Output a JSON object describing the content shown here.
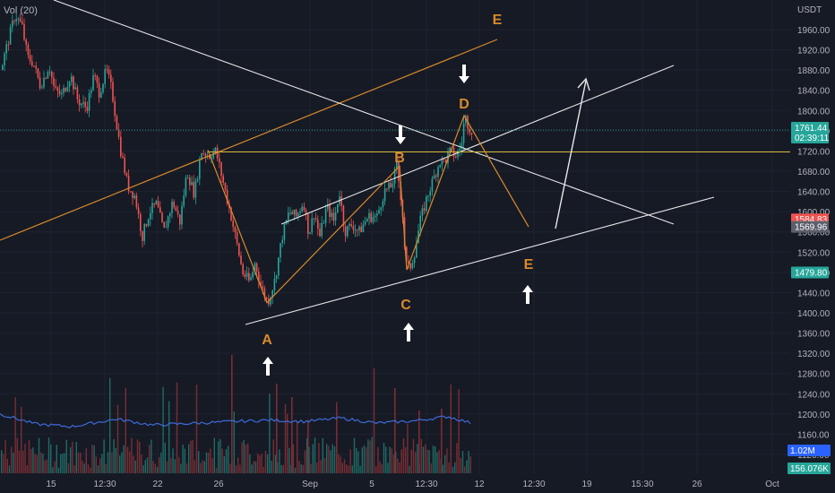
{
  "volume_label": "Vol (20)",
  "currency": "USDT",
  "colors": {
    "background": "#161a25",
    "up": "#26a69a",
    "down": "#ef5350",
    "vol_up": "#1f6b66",
    "vol_down": "#7a2d33",
    "orange": "#d98a2b",
    "white": "#e8e8e8",
    "yellow": "#d4b73a",
    "vol_ma": "#3d6bd9"
  },
  "price_badges": [
    {
      "text": "1761.44",
      "sub": "02:39:11",
      "price": 1761.44,
      "color": "#26a69a"
    },
    {
      "text": "1584.83",
      "price": 1584.83,
      "color": "#ef5350"
    },
    {
      "text": "1569.96",
      "price": 1569.96,
      "color": "#5d606b"
    },
    {
      "text": "1479.80",
      "price": 1479.8,
      "color": "#26a69a"
    }
  ],
  "volume_badges": [
    {
      "text": "1.02M",
      "color": "#2962ff"
    },
    {
      "text": "156.076K",
      "color": "#26a69a"
    }
  ],
  "wave_labels": [
    "A",
    "B",
    "C",
    "D",
    "E",
    "E"
  ],
  "chart_data": {
    "type": "candlestick",
    "title": "",
    "xlabel": "",
    "ylabel": "",
    "ylim": [
      1120,
      1990
    ],
    "y_ticks": [
      1960,
      1920,
      1880,
      1840,
      1800,
      1760,
      1720,
      1680,
      1640,
      1600,
      1560,
      1520,
      1480,
      1440,
      1400,
      1360,
      1320,
      1280,
      1240,
      1200,
      1160,
      1120
    ],
    "x_ticks": [
      "15",
      "12:30",
      "22",
      "26",
      "Sep",
      "5",
      "12:30",
      "12",
      "12:30",
      "19",
      "15:30",
      "26",
      "Oct"
    ],
    "grid": true,
    "price_anchors": [
      [
        0,
        1880
      ],
      [
        8,
        1935
      ],
      [
        16,
        1990
      ],
      [
        24,
        1965
      ],
      [
        30,
        1905
      ],
      [
        36,
        1895
      ],
      [
        44,
        1850
      ],
      [
        50,
        1870
      ],
      [
        54,
        1890
      ],
      [
        60,
        1840
      ],
      [
        68,
        1830
      ],
      [
        78,
        1870
      ],
      [
        86,
        1820
      ],
      [
        96,
        1805
      ],
      [
        104,
        1870
      ],
      [
        110,
        1835
      ],
      [
        118,
        1880
      ],
      [
        124,
        1840
      ],
      [
        128,
        1790
      ],
      [
        134,
        1720
      ],
      [
        142,
        1650
      ],
      [
        150,
        1630
      ],
      [
        158,
        1550
      ],
      [
        166,
        1600
      ],
      [
        174,
        1615
      ],
      [
        182,
        1560
      ],
      [
        192,
        1620
      ],
      [
        200,
        1580
      ],
      [
        208,
        1680
      ],
      [
        216,
        1635
      ],
      [
        224,
        1720
      ],
      [
        232,
        1710
      ],
      [
        240,
        1720
      ],
      [
        248,
        1660
      ],
      [
        256,
        1600
      ],
      [
        262,
        1550
      ],
      [
        270,
        1480
      ],
      [
        278,
        1460
      ],
      [
        284,
        1500
      ],
      [
        290,
        1455
      ],
      [
        298,
        1420
      ],
      [
        306,
        1465
      ],
      [
        314,
        1550
      ],
      [
        322,
        1600
      ],
      [
        330,
        1590
      ],
      [
        338,
        1620
      ],
      [
        344,
        1555
      ],
      [
        350,
        1600
      ],
      [
        356,
        1550
      ],
      [
        364,
        1610
      ],
      [
        372,
        1580
      ],
      [
        378,
        1640
      ],
      [
        384,
        1560
      ],
      [
        392,
        1575
      ],
      [
        400,
        1560
      ],
      [
        410,
        1590
      ],
      [
        420,
        1590
      ],
      [
        428,
        1640
      ],
      [
        436,
        1650
      ],
      [
        442,
        1690
      ],
      [
        448,
        1610
      ],
      [
        452,
        1500
      ],
      [
        456,
        1485
      ],
      [
        462,
        1520
      ],
      [
        468,
        1580
      ],
      [
        476,
        1630
      ],
      [
        484,
        1670
      ],
      [
        490,
        1700
      ],
      [
        496,
        1700
      ],
      [
        502,
        1720
      ],
      [
        508,
        1710
      ],
      [
        514,
        1730
      ],
      [
        518,
        1790
      ],
      [
        522,
        1770
      ],
      [
        526,
        1760
      ]
    ],
    "volume_anchors": [
      [
        0,
        1200
      ],
      [
        40,
        1180
      ],
      [
        80,
        1175
      ],
      [
        130,
        1190
      ],
      [
        170,
        1178
      ],
      [
        220,
        1182
      ],
      [
        260,
        1185
      ],
      [
        300,
        1188
      ],
      [
        340,
        1185
      ],
      [
        380,
        1192
      ],
      [
        420,
        1182
      ],
      [
        460,
        1186
      ],
      [
        500,
        1195
      ],
      [
        526,
        1182
      ]
    ],
    "annotations": {
      "wave_points": [
        {
          "label": "A",
          "x": 298,
          "price": 1420
        },
        {
          "label": "B",
          "x": 446,
          "price": 1690
        },
        {
          "label": "C",
          "x": 454,
          "price": 1485
        },
        {
          "label": "D",
          "x": 518,
          "price": 1790
        },
        {
          "label": "E",
          "x": 590,
          "price": 1570
        }
      ],
      "horizontal_level": 1718
    }
  }
}
